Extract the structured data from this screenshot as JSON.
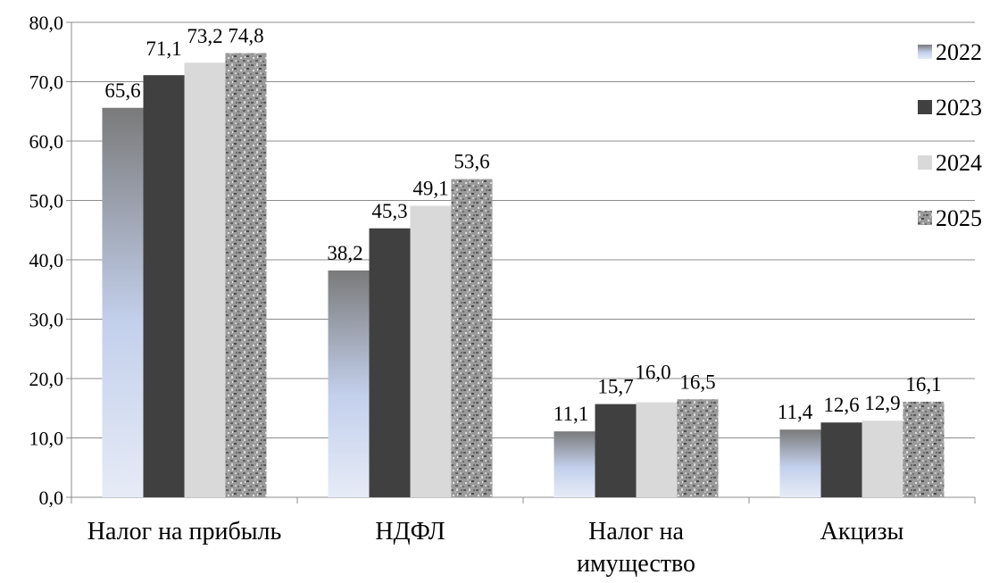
{
  "chart_data": {
    "type": "bar",
    "categories": [
      [
        "Налог на прибыль"
      ],
      [
        "НДФЛ"
      ],
      [
        "Налог на",
        "имущество"
      ],
      [
        "Акцизы"
      ]
    ],
    "series": [
      {
        "name": "2022",
        "values": [
          65.6,
          38.2,
          11.1,
          11.4
        ],
        "labels": [
          "65,6",
          "38,2",
          "11,1",
          "11,4"
        ]
      },
      {
        "name": "2023",
        "values": [
          71.1,
          45.3,
          15.7,
          12.6
        ],
        "labels": [
          "71,1",
          "45,3",
          "15,7",
          "12,6"
        ]
      },
      {
        "name": "2024",
        "values": [
          73.2,
          49.1,
          16.0,
          12.9
        ],
        "labels": [
          "73,2",
          "49,1",
          "16,0",
          "12,9"
        ]
      },
      {
        "name": "2025",
        "values": [
          74.8,
          53.6,
          16.5,
          16.1
        ],
        "labels": [
          "74,8",
          "53,6",
          "16,5",
          "16,1"
        ]
      }
    ],
    "ylim": [
      0,
      80
    ],
    "y_ticks": [
      "0,0",
      "10,0",
      "20,0",
      "30,0",
      "40,0",
      "50,0",
      "60,0",
      "70,0",
      "80,0"
    ],
    "grid": true,
    "legend_position": "right",
    "series_styles": [
      {
        "fill": "gradient-blue-gray",
        "top_color": "#777777",
        "bottom_color": "#e4eaf6"
      },
      {
        "fill": "solid",
        "color": "#404040"
      },
      {
        "fill": "solid",
        "color": "#d9d9d9"
      },
      {
        "fill": "granite-texture",
        "color": "#8c8c8c"
      }
    ]
  }
}
